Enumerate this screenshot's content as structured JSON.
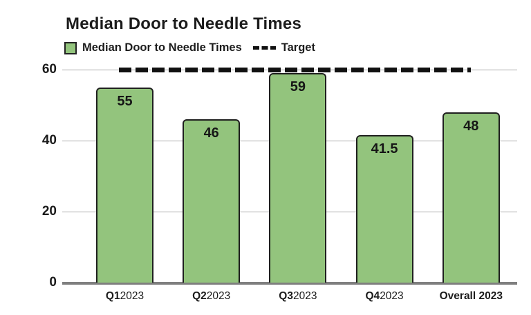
{
  "title": "Median Door to Needle Times",
  "legend": {
    "series_label": "Median Door to Needle Times",
    "target_label": "Target"
  },
  "colors": {
    "bar_fill": "#93c47d",
    "bar_border": "#1f1f1f",
    "gridline": "#a8a8a8",
    "axis_line": "#7f7f7f",
    "target_line": "#111111",
    "text": "#1b1b1b"
  },
  "chart_data": {
    "type": "bar",
    "title": "Median Door to Needle Times",
    "categories": [
      "Q1 2023",
      "Q2 2023",
      "Q3 2023",
      "Q4 2023",
      "Overall 2023"
    ],
    "category_parts": [
      [
        {
          "text": "Q1",
          "bold": true
        },
        {
          "text": "2023",
          "bold": false
        }
      ],
      [
        {
          "text": "Q2",
          "bold": true
        },
        {
          "text": "2023",
          "bold": false
        }
      ],
      [
        {
          "text": "Q3",
          "bold": true
        },
        {
          "text": "2023",
          "bold": false
        }
      ],
      [
        {
          "text": "Q4",
          "bold": true
        },
        {
          "text": "2023",
          "bold": false
        }
      ],
      [
        {
          "text": "Overall ",
          "bold": true
        },
        {
          "text": "2023",
          "bold": true
        }
      ]
    ],
    "series": [
      {
        "name": "Median Door to Needle Times",
        "values": [
          55,
          46,
          59,
          41.5,
          48
        ]
      }
    ],
    "values": [
      55,
      46,
      59,
      41.5,
      48
    ],
    "value_labels": [
      "55",
      "46",
      "59",
      "41.5",
      "48"
    ],
    "target": {
      "name": "Target",
      "value": 60
    },
    "xlabel": "",
    "ylabel": "",
    "ylim": [
      0,
      60
    ],
    "yticks": [
      60,
      40,
      20,
      0
    ],
    "grid": true,
    "legend_position": "top-left"
  }
}
